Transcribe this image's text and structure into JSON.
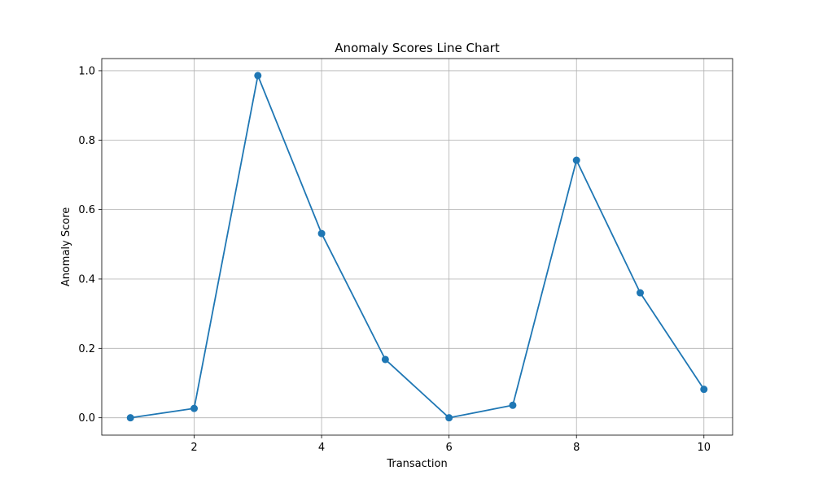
{
  "chart_data": {
    "type": "line",
    "title": "Anomaly Scores Line Chart",
    "xlabel": "Transaction",
    "ylabel": "Anomaly Score",
    "x": [
      1,
      2,
      3,
      4,
      5,
      6,
      7,
      8,
      9,
      10
    ],
    "series": [
      {
        "values": [
          0.0,
          0.027,
          0.986,
          0.531,
          0.168,
          0.0,
          0.036,
          0.742,
          0.36,
          0.082
        ],
        "color": "#1f77b4",
        "marker": "circle"
      }
    ],
    "xlim": [
      0.55,
      10.45
    ],
    "ylim": [
      -0.05,
      1.035
    ],
    "xticks": [
      2,
      4,
      6,
      8,
      10
    ],
    "xtick_labels": [
      "2",
      "4",
      "6",
      "8",
      "10"
    ],
    "yticks": [
      0.0,
      0.2,
      0.4,
      0.6,
      0.8,
      1.0
    ],
    "ytick_labels": [
      "0.0",
      "0.2",
      "0.4",
      "0.6",
      "0.8",
      "1.0"
    ],
    "grid": true
  }
}
